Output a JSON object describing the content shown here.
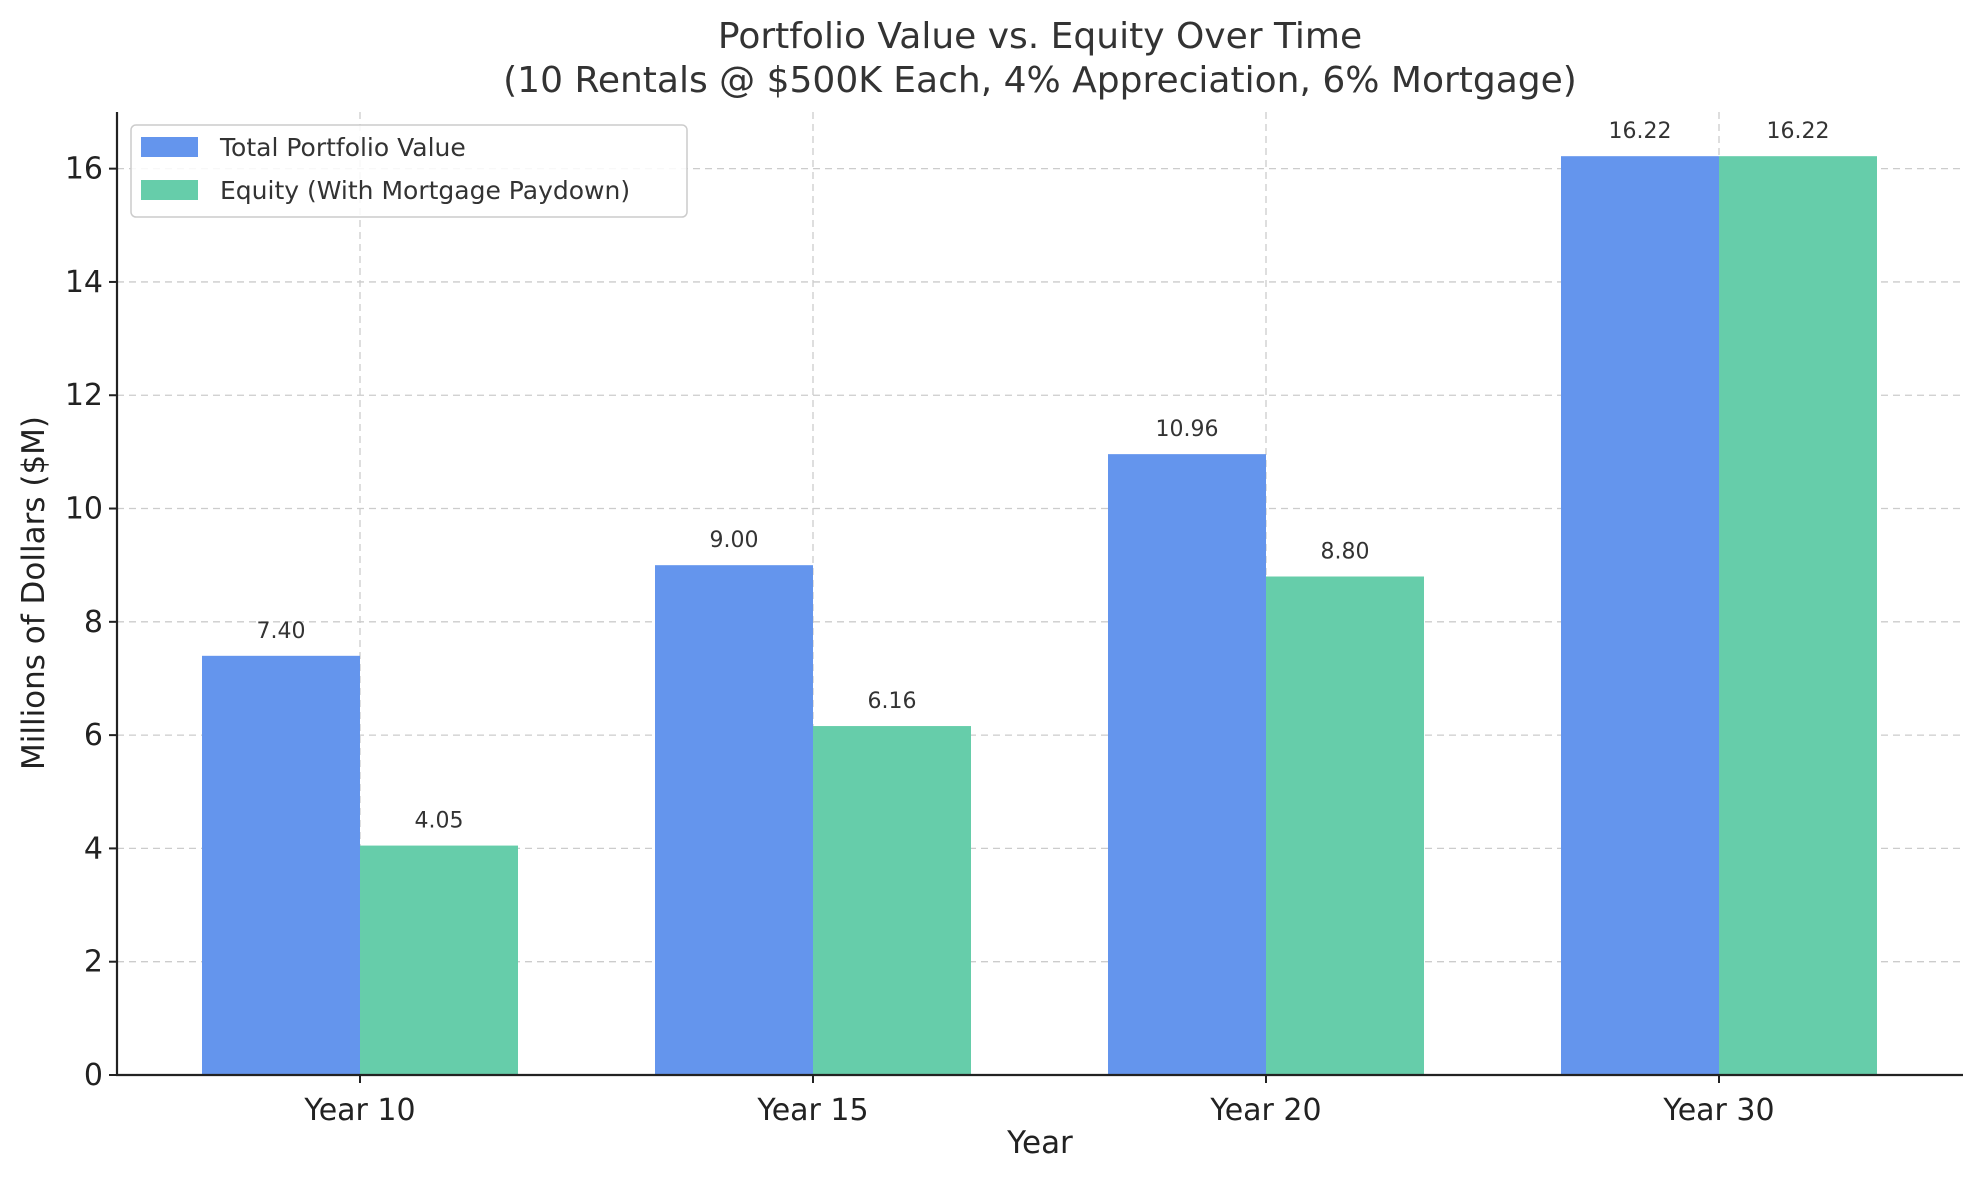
{
  "chart_data": {
    "type": "bar",
    "title": "Portfolio Value vs. Equity Over Time",
    "subtitle": "(10 Rentals @ $500K Each, 4% Appreciation, 6% Mortgage)",
    "xlabel": "Year",
    "ylabel": "Millions of Dollars ($M)",
    "categories": [
      "Year 10",
      "Year 15",
      "Year 20",
      "Year 30"
    ],
    "series": [
      {
        "name": "Total Portfolio Value",
        "color": "#6495ED",
        "values": [
          7.4,
          9.0,
          10.96,
          16.22
        ],
        "labels": [
          "7.40",
          "9.00",
          "10.96",
          "16.22"
        ]
      },
      {
        "name": "Equity (With Mortgage Paydown)",
        "color": "#66CDAA",
        "values": [
          4.05,
          6.16,
          8.8,
          16.22
        ],
        "labels": [
          "4.05",
          "6.16",
          "8.80",
          "16.22"
        ]
      }
    ],
    "ylim": [
      0,
      17
    ],
    "yticks": [
      0,
      2,
      4,
      6,
      8,
      10,
      12,
      14,
      16
    ],
    "grid": true,
    "legend_position": "top-left"
  }
}
